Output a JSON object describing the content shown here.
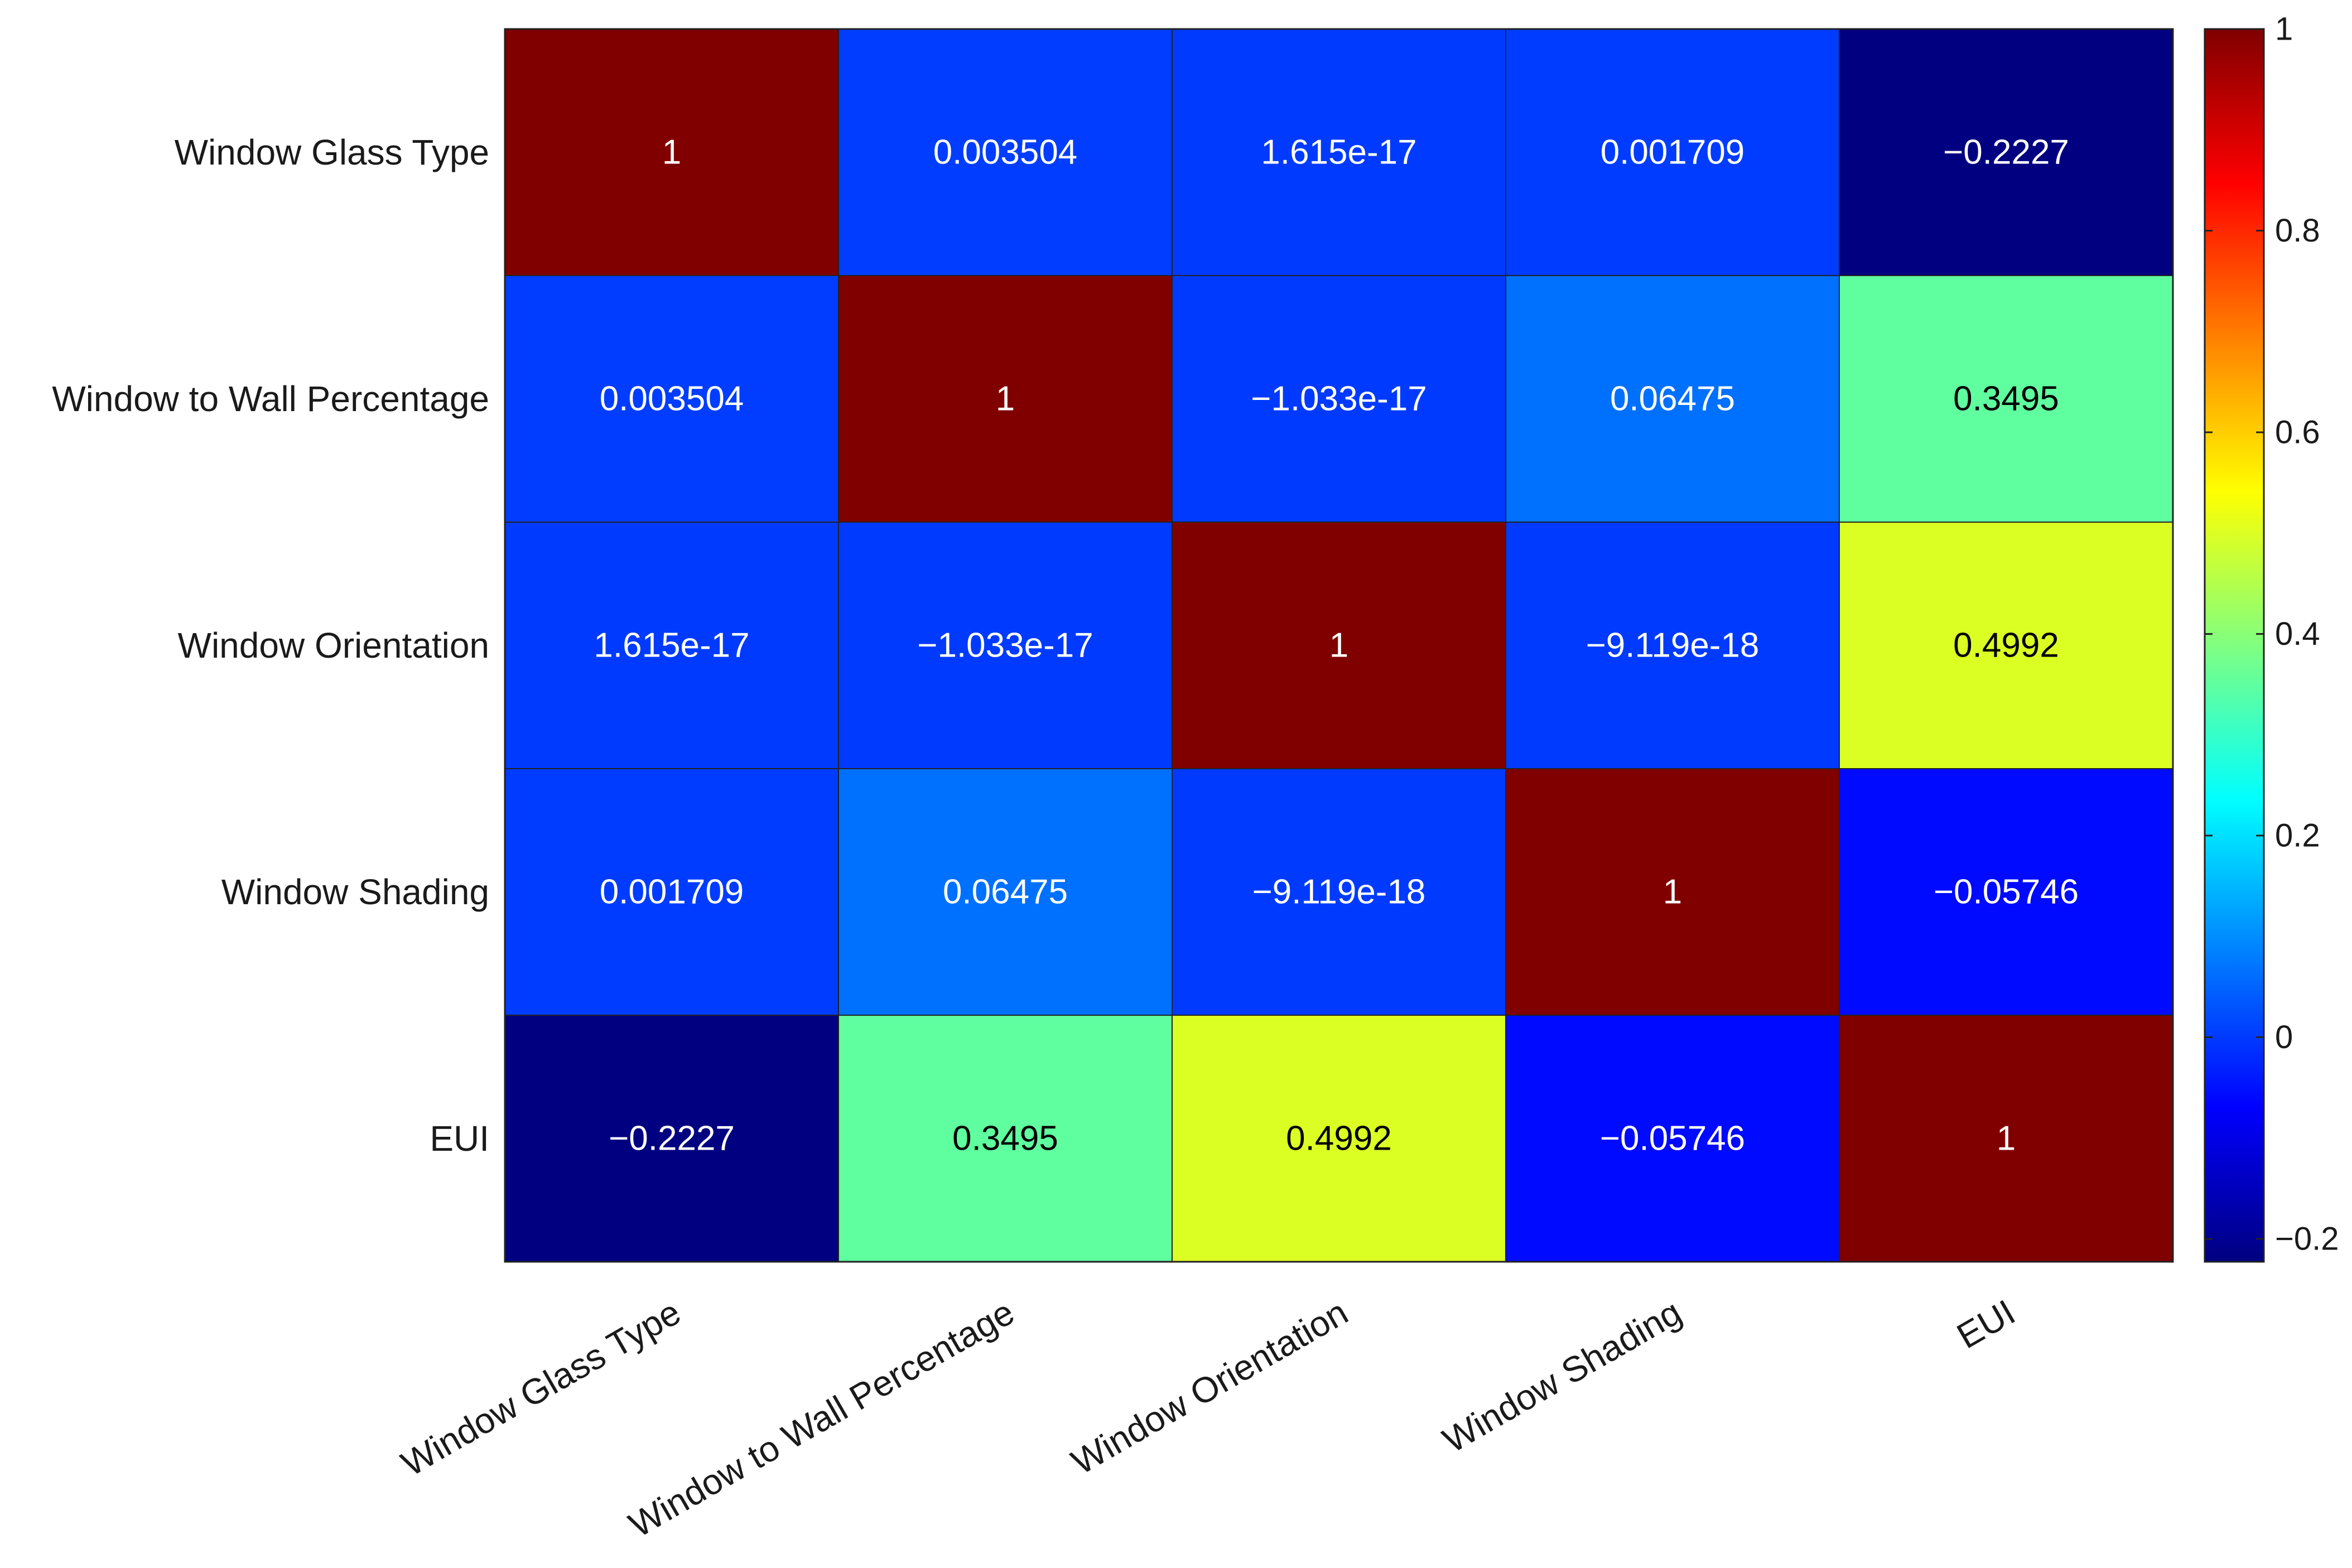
{
  "chart_data": {
    "type": "heatmap",
    "title": "",
    "row_labels": [
      "Window Glass Type",
      "Window to Wall Percentage",
      "Window Orientation",
      "Window Shading",
      "EUI"
    ],
    "col_labels": [
      "Window Glass Type",
      "Window to Wall Percentage",
      "Window Orientation",
      "Window Shading",
      "EUI"
    ],
    "values": [
      [
        1,
        0.003504,
        1.615e-17,
        0.001709,
        -0.2227
      ],
      [
        0.003504,
        1,
        -1.033e-17,
        0.06475,
        0.3495
      ],
      [
        1.615e-17,
        -1.033e-17,
        1,
        -9.119e-18,
        0.4992
      ],
      [
        0.001709,
        0.06475,
        -9.119e-18,
        1,
        -0.05746
      ],
      [
        -0.2227,
        0.3495,
        0.4992,
        -0.05746,
        1
      ]
    ],
    "cell_labels": [
      [
        "1",
        "0.003504",
        "1.615e-17",
        "0.001709",
        "−0.2227"
      ],
      [
        "0.003504",
        "1",
        "−1.033e-17",
        "0.06475",
        "0.3495"
      ],
      [
        "1.615e-17",
        "−1.033e-17",
        "1",
        "−9.119e-18",
        "0.4992"
      ],
      [
        "0.001709",
        "0.06475",
        "−9.119e-18",
        "1",
        "−0.05746"
      ],
      [
        "−0.2227",
        "0.3495",
        "0.4992",
        "−0.05746",
        "1"
      ]
    ],
    "colormap": "jet",
    "color_range": [
      -0.2227,
      1
    ],
    "colorbar": {
      "ticks": [
        1,
        0.8,
        0.6,
        0.4,
        0.2,
        0,
        -0.2
      ],
      "tick_labels": [
        "1",
        "0.8",
        "0.6",
        "0.4",
        "0.2",
        "0",
        "−0.2"
      ]
    },
    "grid": true
  }
}
